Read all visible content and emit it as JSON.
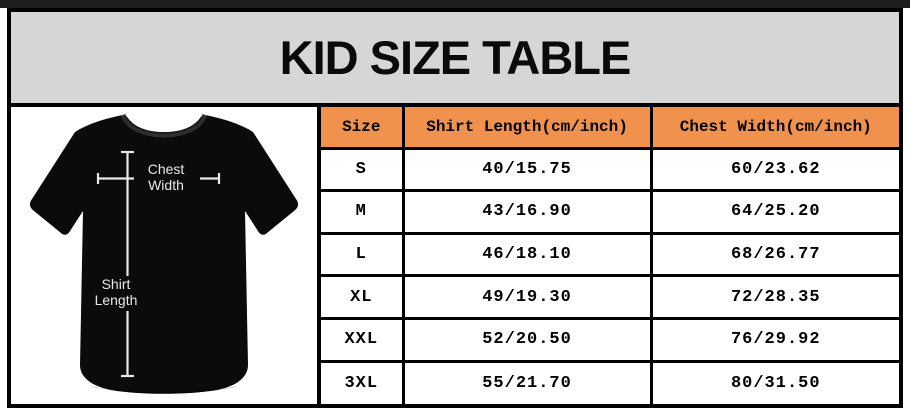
{
  "banner": {
    "title": "KID SIZE TABLE"
  },
  "shirt_diagram": {
    "description": "black kid t-shirt photo with measurement arrows",
    "chest_width_label": [
      "Chest",
      "Width"
    ],
    "shirt_length_label": [
      "Shirt",
      "Length"
    ]
  },
  "size_table": {
    "columns": [
      "Size",
      "Shirt Length(cm/inch)",
      "Chest Width(cm/inch)"
    ],
    "rows": [
      [
        "S",
        "40/15.75",
        "60/23.62"
      ],
      [
        "M",
        "43/16.90",
        "64/25.20"
      ],
      [
        "L",
        "46/18.10",
        "68/26.77"
      ],
      [
        "XL",
        "49/19.30",
        "72/28.35"
      ],
      [
        "XXL",
        "52/20.50",
        "76/29.92"
      ],
      [
        "3XL",
        "55/21.70",
        "80/31.50"
      ]
    ]
  },
  "chart_data": {
    "type": "table",
    "title": "KID SIZE TABLE",
    "columns": [
      "Size",
      "Shirt Length(cm/inch)",
      "Chest Width(cm/inch)"
    ],
    "rows": [
      [
        "S",
        "40/15.75",
        "60/23.62"
      ],
      [
        "M",
        "43/16.90",
        "64/25.20"
      ],
      [
        "L",
        "46/18.10",
        "68/26.77"
      ],
      [
        "XL",
        "49/19.30",
        "72/28.35"
      ],
      [
        "XXL",
        "52/20.50",
        "76/29.92"
      ],
      [
        "3XL",
        "55/21.70",
        "80/31.50"
      ]
    ],
    "sizes": [
      "S",
      "M",
      "L",
      "XL",
      "XXL",
      "3XL"
    ],
    "shirt_length_cm": [
      40,
      43,
      46,
      49,
      52,
      55
    ],
    "shirt_length_inch": [
      15.75,
      16.9,
      18.1,
      19.3,
      20.5,
      21.7
    ],
    "chest_width_cm": [
      60,
      64,
      68,
      72,
      76,
      80
    ],
    "chest_width_inch": [
      23.62,
      25.2,
      26.77,
      28.35,
      29.92,
      31.5
    ]
  },
  "colors": {
    "banner_bg": "#d6d6d6",
    "table_header_bg": "#f0914e",
    "border": "#000000",
    "row_bg": "#ffffff",
    "shirt": "#0b0b0b",
    "measure_line": "#e8e8e8"
  }
}
